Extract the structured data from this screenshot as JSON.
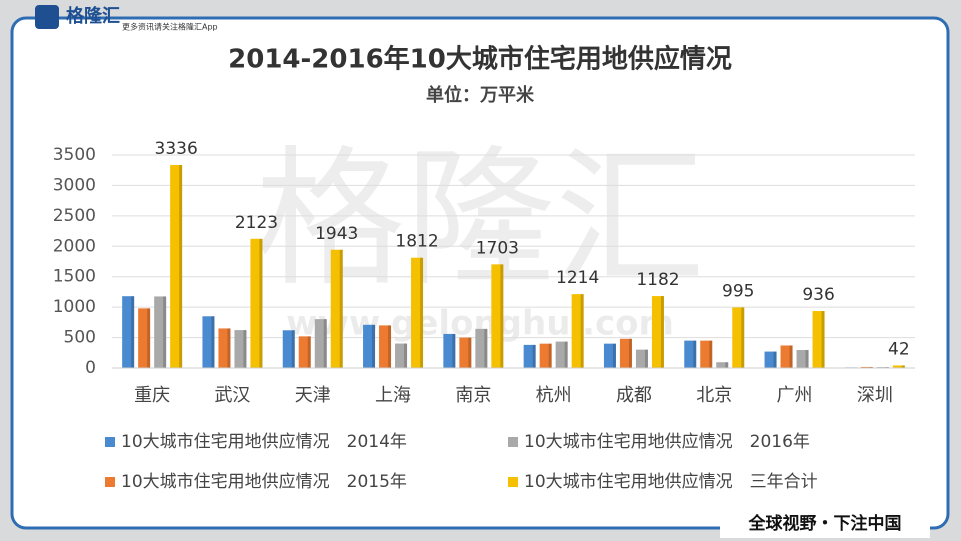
{
  "header": {
    "logo": "格隆汇",
    "slogan": "更多资讯请关注格隆汇App"
  },
  "watermark": {
    "text": "格隆汇",
    "url": "www.gelonghui.com"
  },
  "footer": "全球视野・下注中国",
  "chart_data": {
    "type": "bar",
    "title": "2014-2016年10大城市住宅用地供应情况",
    "subtitle": "单位：万平米",
    "categories": [
      "重庆",
      "武汉",
      "天津",
      "上海",
      "南京",
      "杭州",
      "成都",
      "北京",
      "广州",
      "深圳"
    ],
    "series": [
      {
        "name": "10大城市住宅用地供应情况　2014年",
        "color": "#4a8ad0",
        "values": [
          1180,
          850,
          620,
          710,
          560,
          380,
          400,
          450,
          270,
          10
        ]
      },
      {
        "name": "10大城市住宅用地供应情况　2015年",
        "color": "#ec7a30",
        "values": [
          980,
          650,
          520,
          700,
          500,
          400,
          480,
          450,
          370,
          17
        ]
      },
      {
        "name": "10大城市住宅用地供应情况　2016年",
        "color": "#a9a9a9",
        "values": [
          1176,
          623,
          803,
          402,
          643,
          434,
          302,
          95,
          296,
          15
        ]
      },
      {
        "name": "10大城市住宅用地供应情况　三年合计",
        "color": "#f5c000",
        "values": [
          3336,
          2123,
          1943,
          1812,
          1703,
          1214,
          1182,
          995,
          936,
          42
        ],
        "data_labels": true
      }
    ],
    "ylim": [
      0,
      3500
    ],
    "yticks": [
      0,
      500,
      1000,
      1500,
      2000,
      2500,
      3000,
      3500
    ],
    "grid": true,
    "legend": "bottom"
  }
}
